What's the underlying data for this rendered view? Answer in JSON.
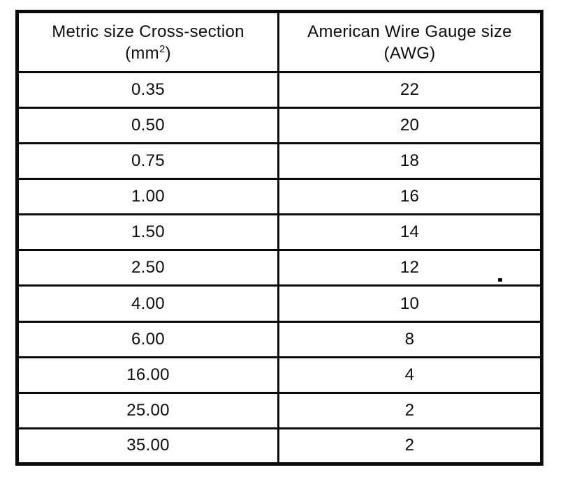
{
  "table": {
    "header": {
      "metric": {
        "line1": "Metric size Cross-section",
        "unit_pre": "(mm",
        "unit_sup": "2",
        "unit_post": ")"
      },
      "awg": {
        "line1": "American Wire Gauge size",
        "line2": "(AWG)"
      }
    },
    "rows": [
      {
        "metric": "0.35",
        "awg": "22"
      },
      {
        "metric": "0.50",
        "awg": "20"
      },
      {
        "metric": "0.75",
        "awg": "18"
      },
      {
        "metric": "1.00",
        "awg": "16"
      },
      {
        "metric": "1.50",
        "awg": "14"
      },
      {
        "metric": "2.50",
        "awg": "12"
      },
      {
        "metric": "4.00",
        "awg": "10"
      },
      {
        "metric": "6.00",
        "awg": "8"
      },
      {
        "metric": "16.00",
        "awg": "4"
      },
      {
        "metric": "25.00",
        "awg": "2"
      },
      {
        "metric": "35.00",
        "awg": "2"
      }
    ]
  }
}
